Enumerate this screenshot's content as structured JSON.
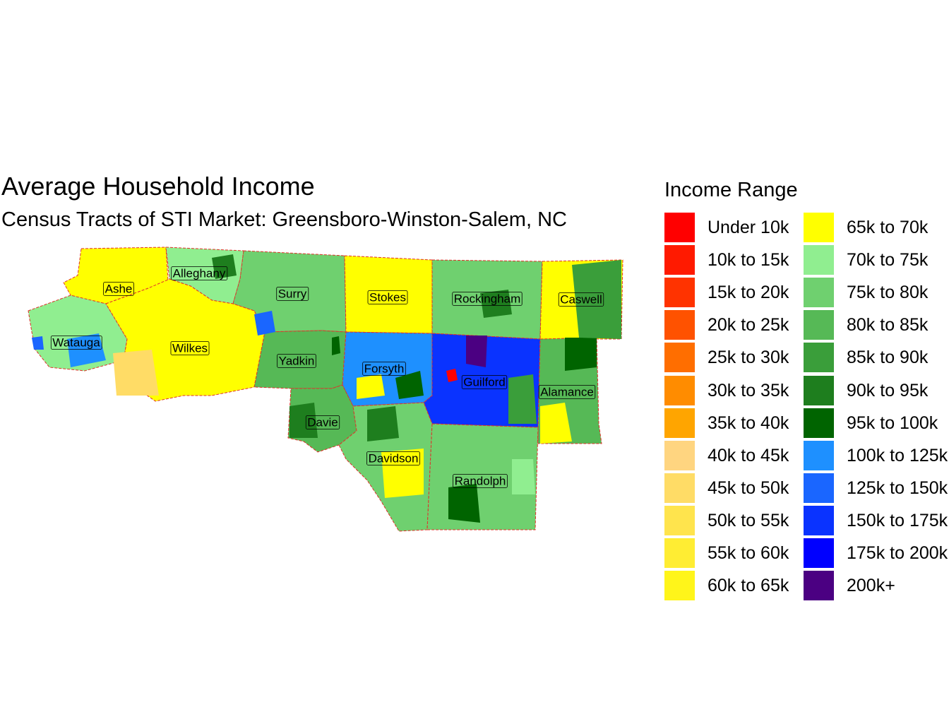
{
  "title": "Average Household Income",
  "subtitle": "Census Tracts of STI Market: Greensboro-Winston-Salem, NC",
  "legend": {
    "title": "Income Range",
    "items": [
      {
        "label": "Under 10k",
        "color": "#ff0000"
      },
      {
        "label": "10k to 15k",
        "color": "#ff1a00"
      },
      {
        "label": "15k to 20k",
        "color": "#ff3300"
      },
      {
        "label": "20k to 25k",
        "color": "#ff5200"
      },
      {
        "label": "25k to 30k",
        "color": "#ff6e00"
      },
      {
        "label": "30k to 35k",
        "color": "#ff8c00"
      },
      {
        "label": "35k to 40k",
        "color": "#ffa500"
      },
      {
        "label": "40k to 45k",
        "color": "#ffd580"
      },
      {
        "label": "45k to 50k",
        "color": "#ffdc66"
      },
      {
        "label": "50k to 55k",
        "color": "#ffe44d"
      },
      {
        "label": "55k to 60k",
        "color": "#ffed33"
      },
      {
        "label": "60k to 65k",
        "color": "#fff51a"
      },
      {
        "label": "65k to 70k",
        "color": "#ffff00"
      },
      {
        "label": "70k to 75k",
        "color": "#90ee90"
      },
      {
        "label": "75k to 80k",
        "color": "#6fd06f"
      },
      {
        "label": "80k to 85k",
        "color": "#56b956"
      },
      {
        "label": "85k to 90k",
        "color": "#3a9e3a"
      },
      {
        "label": "90k to 95k",
        "color": "#1e7e1e"
      },
      {
        "label": "95k to 100k",
        "color": "#006400"
      },
      {
        "label": "100k to 125k",
        "color": "#1e90ff"
      },
      {
        "label": "125k to 150k",
        "color": "#1a66ff"
      },
      {
        "label": "150k to 175k",
        "color": "#0a33ff"
      },
      {
        "label": "175k to 200k",
        "color": "#0000ff"
      },
      {
        "label": "200k+",
        "color": "#4b0082"
      }
    ]
  },
  "counties": [
    {
      "name": "Ashe",
      "color": "#ffff00"
    },
    {
      "name": "Alleghany",
      "color": "#90ee90"
    },
    {
      "name": "Surry",
      "color": "#6fd06f"
    },
    {
      "name": "Stokes",
      "color": "#ffff00"
    },
    {
      "name": "Rockingham",
      "color": "#6fd06f"
    },
    {
      "name": "Caswell",
      "color": "#ffff00"
    },
    {
      "name": "Watauga",
      "color": "#90ee90"
    },
    {
      "name": "Wilkes",
      "color": "#ffff00"
    },
    {
      "name": "Yadkin",
      "color": "#56b956"
    },
    {
      "name": "Forsyth",
      "color": "#1e90ff"
    },
    {
      "name": "Guilford",
      "color": "#0a33ff"
    },
    {
      "name": "Alamance",
      "color": "#56b956"
    },
    {
      "name": "Davie",
      "color": "#56b956"
    },
    {
      "name": "Davidson",
      "color": "#6fd06f"
    },
    {
      "name": "Randolph",
      "color": "#6fd06f"
    }
  ],
  "county_border_color": "#e0312a"
}
